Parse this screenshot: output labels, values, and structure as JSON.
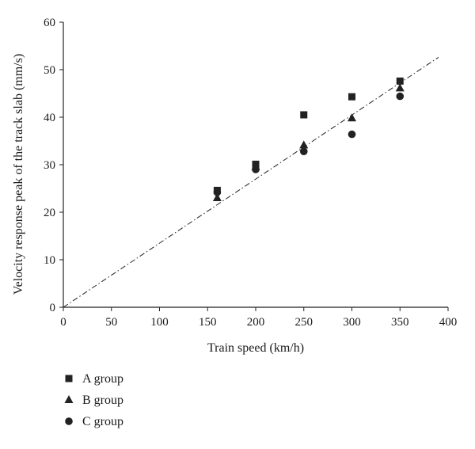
{
  "chart_data": {
    "type": "scatter",
    "xlabel": "Train speed (km/h)",
    "ylabel": "Velocity response peak of the track slab (mm/s)",
    "xlim": [
      0,
      400
    ],
    "ylim": [
      0,
      60
    ],
    "x_ticks": [
      0,
      50,
      100,
      150,
      200,
      250,
      300,
      350,
      400
    ],
    "y_ticks": [
      0,
      10,
      20,
      30,
      40,
      50,
      60
    ],
    "grid": false,
    "legend_position": "bottom-left, below plot",
    "series": [
      {
        "name": "A group",
        "marker": "square",
        "color": "#222222",
        "points": [
          {
            "x": 160,
            "y": 24.6
          },
          {
            "x": 200,
            "y": 30.1
          },
          {
            "x": 250,
            "y": 40.5
          },
          {
            "x": 300,
            "y": 44.3
          },
          {
            "x": 350,
            "y": 47.6
          }
        ]
      },
      {
        "name": "B group",
        "marker": "triangle",
        "color": "#222222",
        "points": [
          {
            "x": 160,
            "y": 23.0
          },
          {
            "x": 200,
            "y": 29.6
          },
          {
            "x": 250,
            "y": 34.1
          },
          {
            "x": 300,
            "y": 39.8
          },
          {
            "x": 350,
            "y": 46.1
          }
        ]
      },
      {
        "name": "C group",
        "marker": "circle",
        "color": "#222222",
        "points": [
          {
            "x": 160,
            "y": 24.2
          },
          {
            "x": 200,
            "y": 29.0
          },
          {
            "x": 250,
            "y": 32.8
          },
          {
            "x": 300,
            "y": 36.4
          },
          {
            "x": 350,
            "y": 44.4
          }
        ]
      }
    ],
    "fit_line": {
      "style": "dash-dot",
      "color": "#222222",
      "points": [
        {
          "x": 0,
          "y": 0
        },
        {
          "x": 390,
          "y": 52.6
        }
      ]
    }
  }
}
